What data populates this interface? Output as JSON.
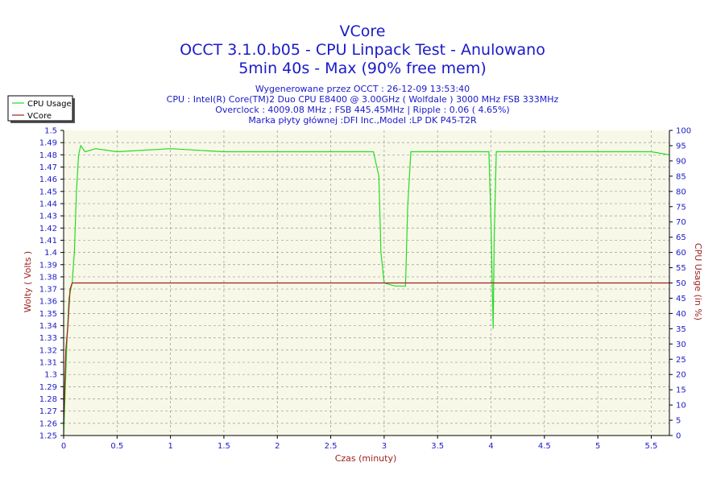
{
  "chart_data": {
    "type": "line",
    "title_lines": [
      "VCore",
      "OCCT 3.1.0.b05 - CPU Linpack Test - Anulowano",
      "5min 40s - Max (90% free mem)"
    ],
    "info_lines": [
      "Wygenerowane przez OCCT : 26-12-09 13:53:40",
      "CPU : Intel(R) Core(TM)2 Duo CPU E8400 @ 3.00GHz ( Wolfdale ) 3000 MHz FSB 333MHz",
      "Overclock : 4009.08 MHz ; FSB 445.45MHz | Ripple : 0.06 ( 4.65%)",
      "Marka płyty głównej :DFI Inc.,Model :LP DK P45-T2R"
    ],
    "xlabel": "Czas (minuty)",
    "ylabel_left": "Wolty ( Volts )",
    "ylabel_right": "CPU Usage (in %)",
    "xlim": [
      0,
      5.67
    ],
    "ylim_left": [
      1.25,
      1.5
    ],
    "ylim_right": [
      0,
      100
    ],
    "x_ticks": [
      "0",
      "0.5",
      "1",
      "1.5",
      "2",
      "2.5",
      "3",
      "3.5",
      "4",
      "4.5",
      "5",
      "5.5"
    ],
    "y_left_ticks": [
      "1.25",
      "1.26",
      "1.27",
      "1.28",
      "1.29",
      "1.3",
      "1.31",
      "1.32",
      "1.33",
      "1.34",
      "1.35",
      "1.36",
      "1.37",
      "1.38",
      "1.39",
      "1.4",
      "1.41",
      "1.42",
      "1.43",
      "1.44",
      "1.45",
      "1.46",
      "1.47",
      "1.48",
      "1.49",
      "1.5"
    ],
    "y_right_ticks": [
      "0",
      "5",
      "10",
      "15",
      "20",
      "25",
      "30",
      "35",
      "40",
      "45",
      "50",
      "55",
      "60",
      "65",
      "70",
      "75",
      "80",
      "85",
      "90",
      "95",
      "100"
    ],
    "grid": true,
    "legend_position": "top-left",
    "colors": {
      "background": "#f8f8e8",
      "grid": "#999999",
      "cpu": "#22dd22",
      "vcore": "#a02020",
      "text": "#1a1ac8"
    },
    "series": [
      {
        "name": "CPU Usage",
        "axis": "right",
        "x": [
          0,
          0.03,
          0.05,
          0.08,
          0.1,
          0.12,
          0.14,
          0.16,
          0.2,
          0.3,
          0.5,
          1.0,
          1.5,
          2.0,
          2.5,
          2.9,
          2.95,
          2.97,
          3.0,
          3.1,
          3.2,
          3.22,
          3.25,
          3.5,
          3.98,
          4.0,
          4.02,
          4.03,
          4.05,
          4.5,
          5.0,
          5.5,
          5.67
        ],
        "y": [
          0,
          30,
          45,
          50,
          60,
          80,
          92,
          95,
          93,
          94,
          93,
          94,
          93,
          93,
          93,
          93,
          85,
          60,
          50,
          49,
          49,
          75,
          93,
          93,
          93,
          70,
          35,
          65,
          93,
          93,
          93,
          93,
          92
        ]
      },
      {
        "name": "VCore",
        "axis": "left",
        "x": [
          0,
          0.02,
          0.04,
          0.06,
          0.08,
          0.1,
          0.3,
          1.0,
          2.0,
          3.0,
          4.0,
          5.0,
          5.67
        ],
        "y": [
          1.26,
          1.32,
          1.34,
          1.37,
          1.375,
          1.375,
          1.375,
          1.375,
          1.375,
          1.375,
          1.375,
          1.375,
          1.375
        ]
      }
    ]
  }
}
